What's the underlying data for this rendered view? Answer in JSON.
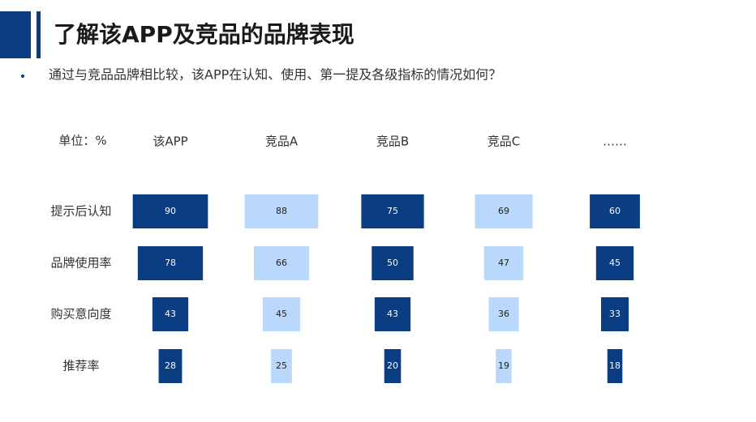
{
  "title": "了解该APP及竞品的品牌表现",
  "subtitle": "通过与竞品品牌相比较，该APP在认知、使用、第一提及各级指标的情况如何？",
  "chart_data": {
    "type": "bar",
    "unit_label": "单位：%",
    "categories": [
      "提示后认知",
      "品牌使用率",
      "购买意向度",
      "推荐率"
    ],
    "series": [
      {
        "name": "该APP",
        "color": "#0a3d82",
        "values": [
          90,
          78,
          43,
          28
        ]
      },
      {
        "name": "竞品A",
        "color": "#b9d8fc",
        "values": [
          88,
          66,
          45,
          25
        ]
      },
      {
        "name": "竞品B",
        "color": "#0a3d82",
        "values": [
          75,
          50,
          43,
          20
        ]
      },
      {
        "name": "竞品C",
        "color": "#b9d8fc",
        "values": [
          69,
          47,
          36,
          19
        ]
      },
      {
        "name": "……",
        "color": "#0a3d82",
        "values": [
          60,
          45,
          33,
          18
        ]
      }
    ]
  }
}
